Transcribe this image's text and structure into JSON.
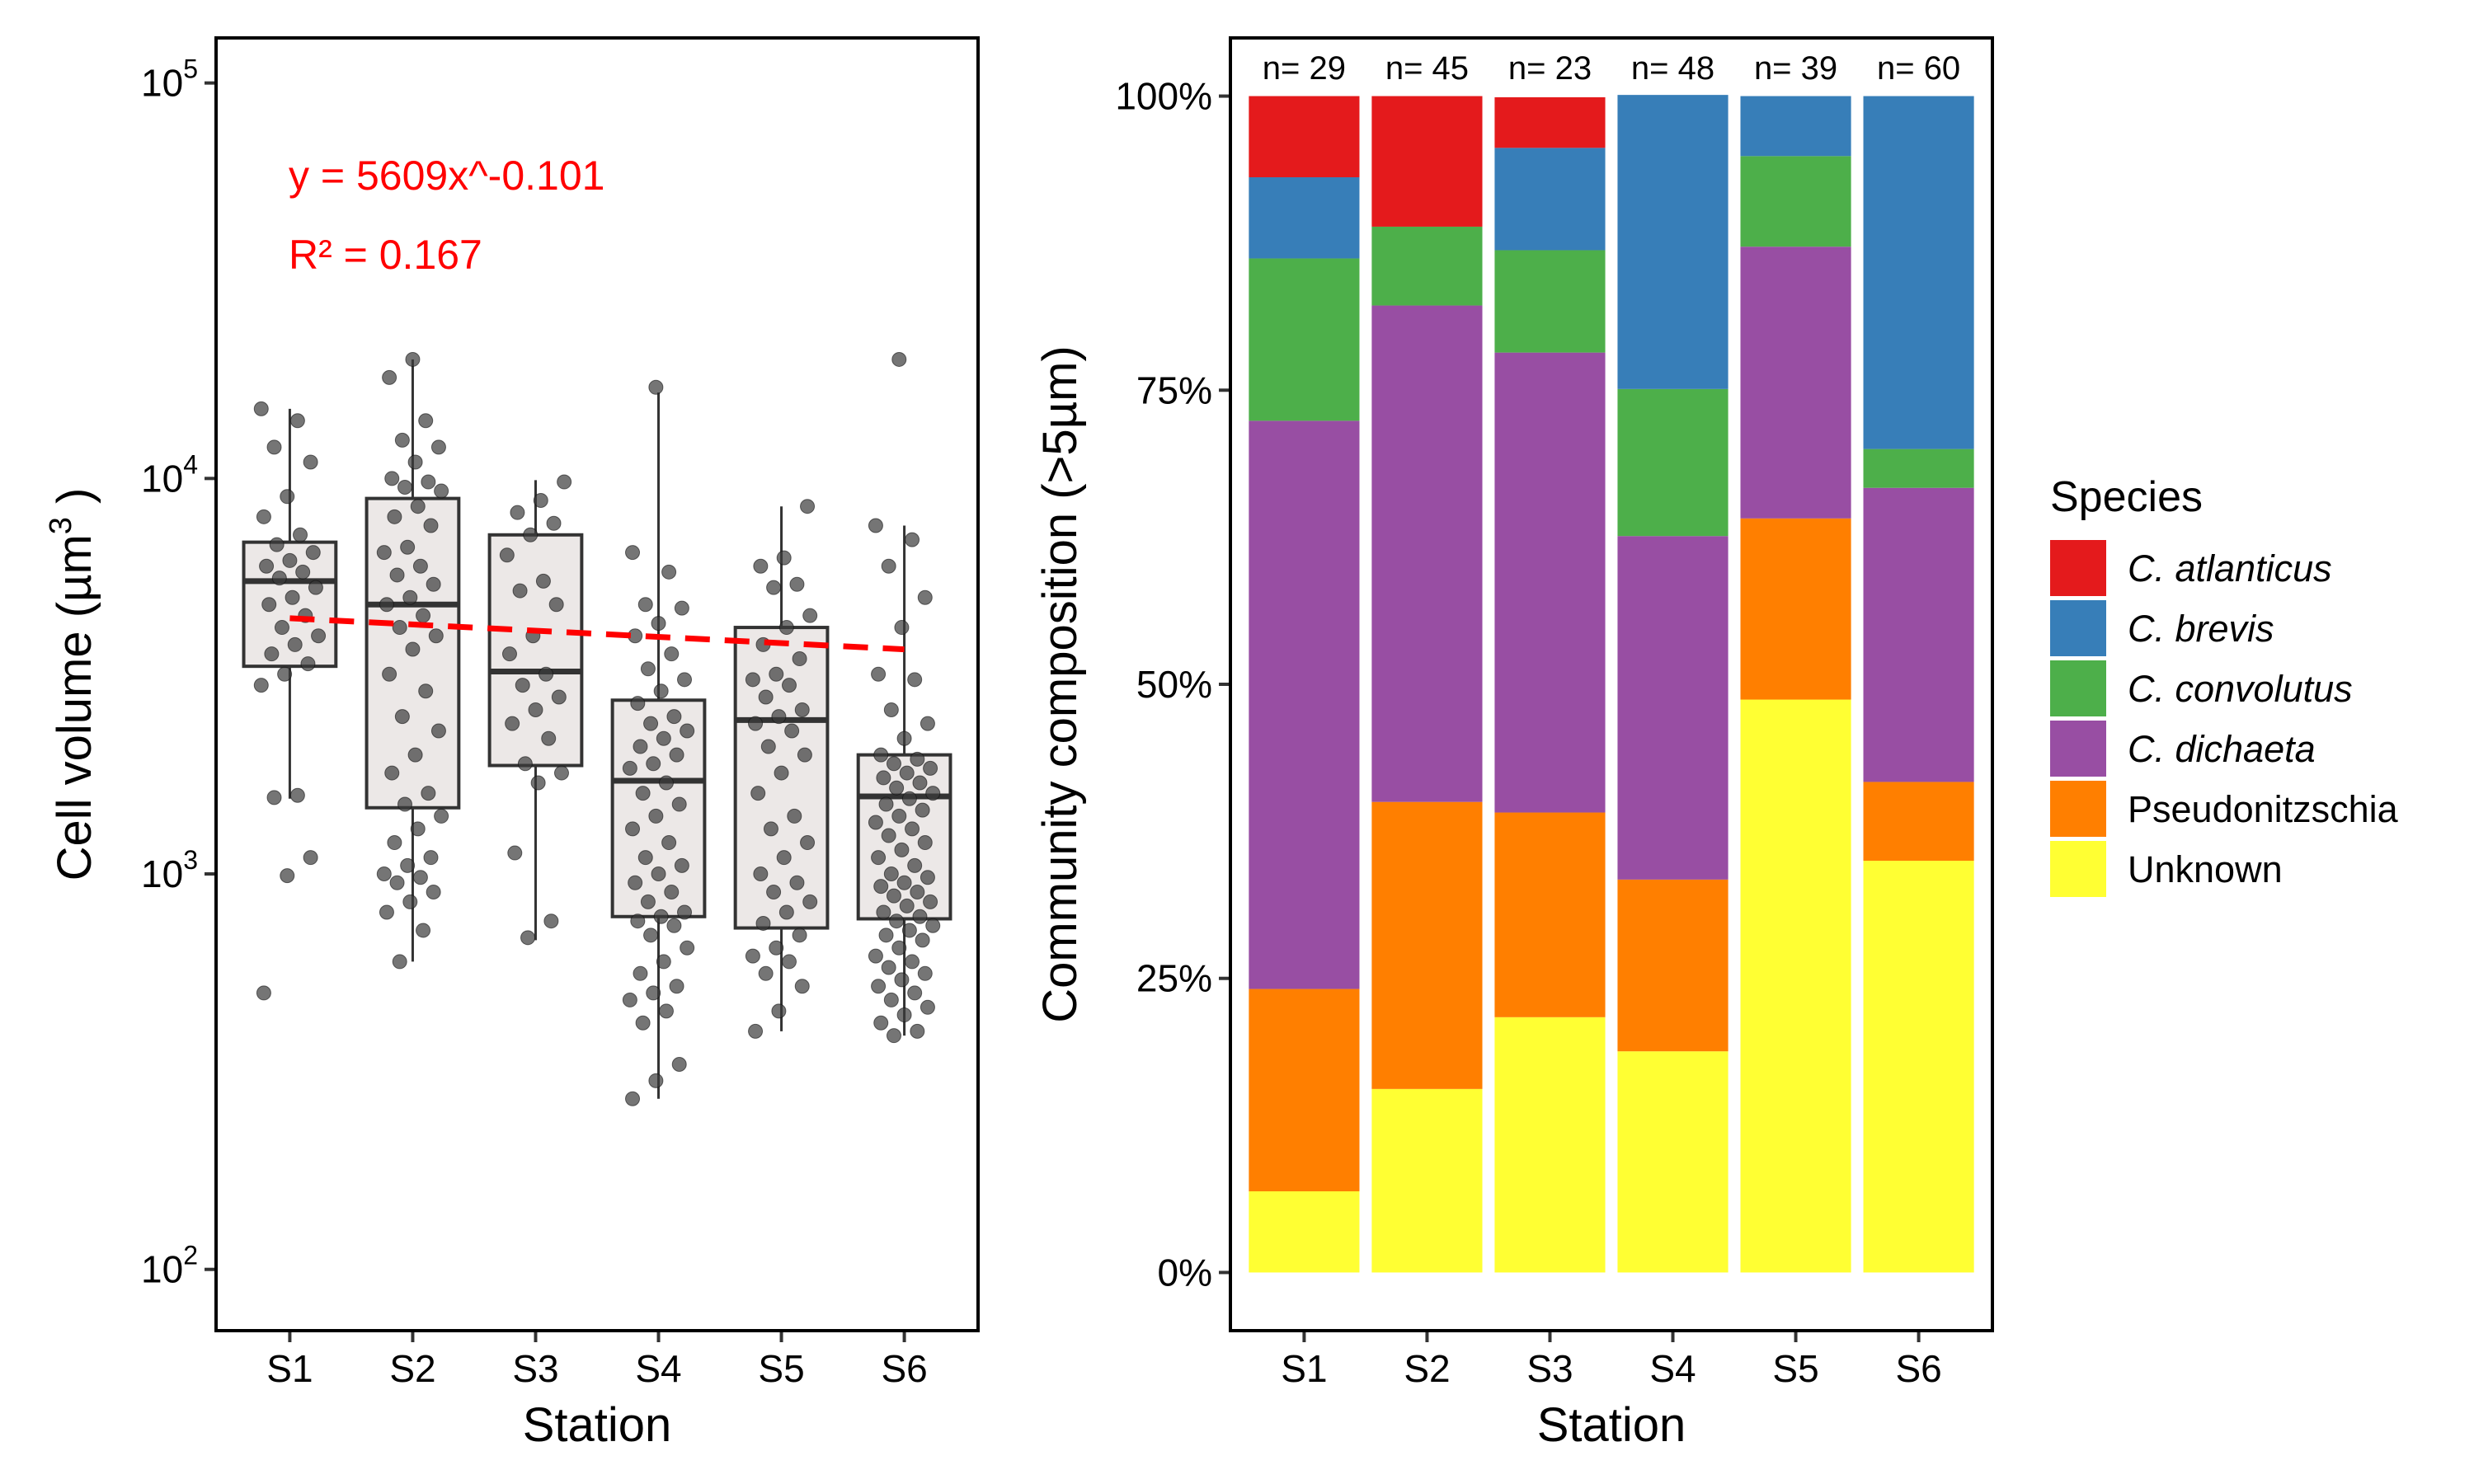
{
  "chart_data": [
    {
      "type": "box",
      "xlabel": "Station",
      "ylabel": "Cell volume (µm",
      "ylabel_sup": "3",
      "ylabel_close": " )",
      "y_scale": "log10",
      "ylim": [
        70,
        130000
      ],
      "y_ticks": [
        {
          "value": 100,
          "base": "10",
          "exp": "2"
        },
        {
          "value": 1000,
          "base": "10",
          "exp": "3"
        },
        {
          "value": 10000,
          "base": "10",
          "exp": "4"
        },
        {
          "value": 100000,
          "base": "10",
          "exp": "5"
        }
      ],
      "categories": [
        "S1",
        "S2",
        "S3",
        "S4",
        "S5",
        "S6"
      ],
      "boxes": [
        {
          "q1": 3350,
          "median": 5500,
          "q3": 6900,
          "whisker_low": 1550,
          "whisker_high": 15000
        },
        {
          "q1": 1470,
          "median": 4800,
          "q3": 8900,
          "whisker_low": 600,
          "whisker_high": 20000
        },
        {
          "q1": 1880,
          "median": 3250,
          "q3": 7200,
          "whisker_low": 680,
          "whisker_high": 9900
        },
        {
          "q1": 780,
          "median": 1720,
          "q3": 2750,
          "whisker_low": 270,
          "whisker_high": 16500
        },
        {
          "q1": 730,
          "median": 2450,
          "q3": 4200,
          "whisker_low": 400,
          "whisker_high": 8500
        },
        {
          "q1": 770,
          "median": 1570,
          "q3": 2000,
          "whisker_low": 390,
          "whisker_high": 7600
        }
      ],
      "points": [
        [
          15000,
          14000,
          12000,
          11000,
          9000,
          8000,
          7200,
          6800,
          6500,
          6200,
          6000,
          5800,
          5600,
          5300,
          5000,
          4800,
          4500,
          4200,
          4000,
          3800,
          3600,
          3400,
          3200,
          3000,
          1580,
          1560,
          1100,
          990,
          500
        ],
        [
          20000,
          18000,
          14000,
          12500,
          12000,
          11000,
          10000,
          9800,
          9500,
          9300,
          8500,
          8000,
          7600,
          6700,
          6500,
          6000,
          5700,
          5400,
          5000,
          4800,
          4500,
          4200,
          4000,
          3700,
          3200,
          2900,
          2500,
          2300,
          2000,
          1800,
          1600,
          1500,
          1400,
          1300,
          1200,
          1100,
          1050,
          1000,
          980,
          950,
          900,
          850,
          800,
          720,
          600
        ],
        [
          9800,
          8800,
          8200,
          7700,
          7200,
          6400,
          5500,
          5200,
          4800,
          4000,
          3600,
          3200,
          3000,
          2800,
          2600,
          2400,
          2200,
          1900,
          1800,
          1700,
          1130,
          760,
          690
        ],
        [
          17000,
          6500,
          5800,
          4800,
          4700,
          4300,
          4000,
          3600,
          3300,
          3100,
          2900,
          2700,
          2500,
          2400,
          2300,
          2200,
          2100,
          2000,
          1900,
          1850,
          1700,
          1600,
          1500,
          1400,
          1300,
          1200,
          1100,
          1050,
          1000,
          950,
          900,
          850,
          800,
          780,
          760,
          740,
          700,
          650,
          600,
          560,
          520,
          500,
          480,
          450,
          420,
          330,
          300,
          270
        ],
        [
          8500,
          6300,
          6000,
          5400,
          5300,
          4500,
          4200,
          3800,
          3500,
          3200,
          3100,
          3000,
          2800,
          2600,
          2500,
          2400,
          2300,
          2100,
          2000,
          1800,
          1600,
          1400,
          1300,
          1200,
          1100,
          1000,
          950,
          900,
          850,
          800,
          750,
          700,
          650,
          620,
          600,
          560,
          520,
          450,
          400
        ],
        [
          20000,
          7600,
          7000,
          6000,
          5000,
          4200,
          3200,
          3100,
          2600,
          2400,
          2200,
          2000,
          1950,
          1900,
          1850,
          1800,
          1750,
          1700,
          1650,
          1600,
          1550,
          1500,
          1450,
          1400,
          1350,
          1300,
          1250,
          1200,
          1150,
          1100,
          1050,
          1000,
          980,
          950,
          930,
          900,
          880,
          850,
          830,
          800,
          780,
          760,
          740,
          720,
          700,
          680,
          650,
          620,
          600,
          580,
          560,
          540,
          520,
          500,
          480,
          460,
          440,
          420,
          400,
          390
        ]
      ],
      "fit": {
        "x1": 1,
        "x2": 6,
        "a": 5609,
        "b": -0.101,
        "offset_factor": 0.79
      },
      "annotations": [
        "y = 5609x^-0.101",
        "R² = 0.167"
      ],
      "colors": {
        "box_fill": "#ECE8E7",
        "box_line": "#333333",
        "point": "#3a3a3a",
        "fit": "#FF0000",
        "annotation": "#FF0000"
      }
    },
    {
      "type": "bar",
      "stacked": true,
      "percent": true,
      "xlabel": "Station",
      "ylabel": "Community composition (>5µm)",
      "ylim": [
        0,
        100
      ],
      "y_ticks": [
        "0%",
        "25%",
        "50%",
        "75%",
        "100%"
      ],
      "categories": [
        "S1",
        "S2",
        "S3",
        "S4",
        "S5",
        "S6"
      ],
      "counts": [
        "n= 29",
        "n= 45",
        "n= 23",
        "n= 48",
        "n= 39",
        "n= 60"
      ],
      "series": [
        {
          "name": "Unknown",
          "color": "#FFFF33",
          "italic": false,
          "values": [
            6.9,
            15.6,
            21.7,
            18.8,
            48.7,
            35.0
          ]
        },
        {
          "name": "Pseudonitzschia",
          "color": "#FF7F00",
          "italic": false,
          "values": [
            17.2,
            24.4,
            17.4,
            14.6,
            15.4,
            6.7
          ]
        },
        {
          "name": "C. dichaeta",
          "color": "#984EA3",
          "italic": true,
          "values": [
            48.3,
            42.2,
            39.1,
            29.2,
            23.1,
            25.0
          ]
        },
        {
          "name": "C. convolutus",
          "color": "#4DAF4A",
          "italic": true,
          "values": [
            13.8,
            6.7,
            8.7,
            12.5,
            7.7,
            3.3
          ]
        },
        {
          "name": "C. brevis",
          "color": "#377EB8",
          "italic": true,
          "values": [
            6.9,
            0,
            8.7,
            25.0,
            5.1,
            30.0
          ]
        },
        {
          "name": "C. atlanticus",
          "color": "#E41A1C",
          "italic": true,
          "values": [
            6.9,
            11.1,
            4.3,
            0,
            0,
            0
          ]
        }
      ],
      "legend": {
        "title": "Species",
        "order": [
          "C. atlanticus",
          "C. brevis",
          "C. convolutus",
          "C. dichaeta",
          "Pseudonitzschia",
          "Unknown"
        ],
        "position": "right"
      }
    }
  ]
}
